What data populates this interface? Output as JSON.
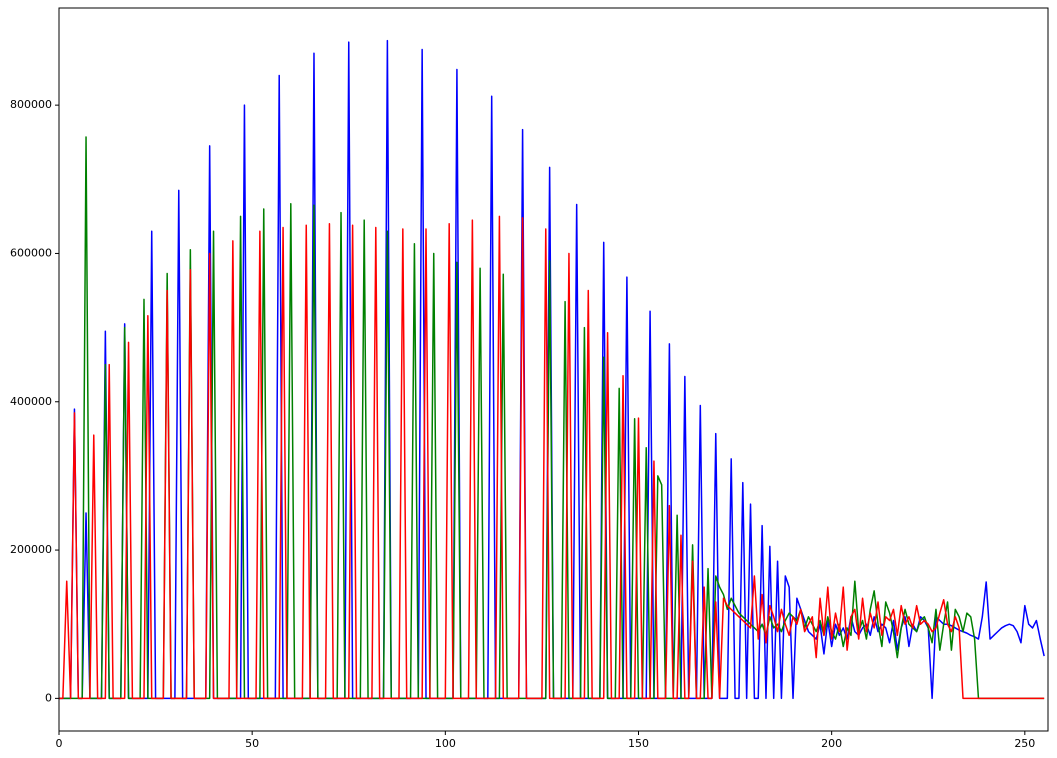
{
  "chart_data": {
    "type": "line",
    "x": [
      0,
      1,
      2,
      3,
      4,
      5,
      6,
      7,
      8,
      9,
      10,
      11,
      12,
      13,
      14,
      15,
      16,
      17,
      18,
      19,
      20,
      21,
      22,
      23,
      24,
      25,
      26,
      27,
      28,
      29,
      30,
      31,
      32,
      33,
      34,
      35,
      36,
      37,
      38,
      39,
      40,
      41,
      42,
      43,
      44,
      45,
      46,
      47,
      48,
      49,
      50,
      51,
      52,
      53,
      54,
      55,
      56,
      57,
      58,
      59,
      60,
      61,
      62,
      63,
      64,
      65,
      66,
      67,
      68,
      69,
      70,
      71,
      72,
      73,
      74,
      75,
      76,
      77,
      78,
      79,
      80,
      81,
      82,
      83,
      84,
      85,
      86,
      87,
      88,
      89,
      90,
      91,
      92,
      93,
      94,
      95,
      96,
      97,
      98,
      99,
      100,
      101,
      102,
      103,
      104,
      105,
      106,
      107,
      108,
      109,
      110,
      111,
      112,
      113,
      114,
      115,
      116,
      117,
      118,
      119,
      120,
      121,
      122,
      123,
      124,
      125,
      126,
      127,
      128,
      129,
      130,
      131,
      132,
      133,
      134,
      135,
      136,
      137,
      138,
      139,
      140,
      141,
      142,
      143,
      144,
      145,
      146,
      147,
      148,
      149,
      150,
      151,
      152,
      153,
      154,
      155,
      156,
      157,
      158,
      159,
      160,
      161,
      162,
      163,
      164,
      165,
      166,
      167,
      168,
      169,
      170,
      171,
      172,
      173,
      174,
      175,
      176,
      177,
      178,
      179,
      180,
      181,
      182,
      183,
      184,
      185,
      186,
      187,
      188,
      189,
      190,
      191,
      192,
      193,
      194,
      195,
      196,
      197,
      198,
      199,
      200,
      201,
      202,
      203,
      204,
      205,
      206,
      207,
      208,
      209,
      210,
      211,
      212,
      213,
      214,
      215,
      216,
      217,
      218,
      219,
      220,
      221,
      222,
      223,
      224,
      225,
      226,
      227,
      228,
      229,
      230,
      231,
      232,
      233,
      234,
      235,
      236,
      237,
      238,
      239,
      240,
      241,
      242,
      243,
      244,
      245,
      246,
      247,
      248,
      249,
      250,
      251,
      252,
      253,
      254,
      255
    ],
    "series": [
      {
        "color": "#0000ff",
        "values": [
          0,
          0,
          0,
          0,
          390000,
          0,
          0,
          250000,
          0,
          0,
          0,
          0,
          495000,
          0,
          0,
          0,
          0,
          505000,
          0,
          0,
          0,
          0,
          0,
          0,
          630000,
          0,
          0,
          0,
          0,
          0,
          0,
          685000,
          0,
          0,
          0,
          0,
          0,
          0,
          0,
          745000,
          0,
          0,
          0,
          0,
          0,
          0,
          0,
          0,
          800000,
          0,
          0,
          0,
          0,
          0,
          0,
          0,
          0,
          840000,
          0,
          0,
          0,
          0,
          0,
          0,
          0,
          0,
          870000,
          0,
          0,
          0,
          0,
          0,
          0,
          0,
          0,
          885000,
          0,
          0,
          0,
          0,
          0,
          0,
          0,
          0,
          0,
          887000,
          0,
          0,
          0,
          0,
          0,
          0,
          0,
          0,
          875000,
          0,
          0,
          0,
          0,
          0,
          0,
          0,
          0,
          848000,
          0,
          0,
          0,
          0,
          0,
          0,
          0,
          0,
          812000,
          0,
          0,
          0,
          0,
          0,
          0,
          0,
          767000,
          0,
          0,
          0,
          0,
          0,
          0,
          716000,
          0,
          0,
          0,
          0,
          0,
          0,
          666000,
          0,
          0,
          0,
          0,
          0,
          0,
          615000,
          0,
          0,
          0,
          0,
          0,
          568000,
          0,
          0,
          0,
          0,
          0,
          522000,
          0,
          0,
          0,
          0,
          478000,
          0,
          0,
          0,
          434000,
          0,
          0,
          0,
          395000,
          0,
          0,
          0,
          357000,
          0,
          0,
          0,
          323000,
          0,
          0,
          291000,
          0,
          262000,
          0,
          0,
          233000,
          0,
          205000,
          0,
          185000,
          0,
          165000,
          150000,
          0,
          135000,
          120000,
          105000,
          90000,
          85000,
          80000,
          100000,
          60000,
          105000,
          70000,
          100000,
          85000,
          95000,
          80000,
          110000,
          90000,
          85000,
          95000,
          100000,
          85000,
          110000,
          90000,
          100000,
          95000,
          75000,
          105000,
          65000,
          95000,
          110000,
          70000,
          100000,
          90000,
          110000,
          105000,
          95000,
          0,
          110000,
          105000,
          100000,
          100000,
          98000,
          95000,
          92000,
          90000,
          88000,
          85000,
          83000,
          80000,
          110000,
          157000,
          80000,
          85000,
          90000,
          95000,
          98000,
          100000,
          98000,
          90000,
          75000,
          125000,
          100000,
          95000,
          105000,
          80000,
          57000
        ]
      },
      {
        "color": "#008000",
        "values": [
          0,
          0,
          0,
          0,
          0,
          0,
          0,
          757000,
          0,
          0,
          0,
          0,
          450000,
          0,
          0,
          0,
          0,
          500000,
          0,
          0,
          0,
          0,
          538000,
          0,
          0,
          0,
          0,
          0,
          573000,
          0,
          0,
          0,
          0,
          0,
          605000,
          0,
          0,
          0,
          0,
          0,
          630000,
          0,
          0,
          0,
          0,
          0,
          0,
          650000,
          0,
          0,
          0,
          0,
          0,
          660000,
          0,
          0,
          0,
          0,
          0,
          0,
          667000,
          0,
          0,
          0,
          0,
          0,
          665000,
          0,
          0,
          0,
          0,
          0,
          0,
          655000,
          0,
          0,
          0,
          0,
          0,
          645000,
          0,
          0,
          0,
          0,
          0,
          630000,
          0,
          0,
          0,
          0,
          0,
          0,
          613000,
          0,
          0,
          0,
          0,
          600000,
          0,
          0,
          0,
          0,
          0,
          588000,
          0,
          0,
          0,
          0,
          0,
          580000,
          0,
          0,
          0,
          0,
          0,
          572000,
          0,
          0,
          0,
          0,
          0,
          0,
          0,
          0,
          0,
          0,
          0,
          590000,
          0,
          0,
          0,
          535000,
          0,
          0,
          0,
          0,
          500000,
          0,
          0,
          0,
          0,
          460000,
          0,
          0,
          0,
          418000,
          0,
          0,
          0,
          377000,
          0,
          0,
          338000,
          0,
          0,
          300000,
          288000,
          0,
          0,
          0,
          247000,
          0,
          0,
          0,
          207000,
          0,
          0,
          0,
          175000,
          0,
          165000,
          150000,
          140000,
          120000,
          135000,
          125000,
          115000,
          110000,
          105000,
          100000,
          95000,
          90000,
          100000,
          85000,
          110000,
          95000,
          100000,
          90000,
          105000,
          115000,
          110000,
          105000,
          120000,
          95000,
          110000,
          100000,
          90000,
          105000,
          85000,
          110000,
          90000,
          80000,
          100000,
          70000,
          95000,
          85000,
          158000,
          90000,
          105000,
          80000,
          120000,
          145000,
          100000,
          70000,
          130000,
          115000,
          90000,
          55000,
          95000,
          120000,
          100000,
          95000,
          90000,
          105000,
          110000,
          95000,
          75000,
          120000,
          65000,
          100000,
          130000,
          65000,
          120000,
          110000,
          90000,
          115000,
          110000,
          80000,
          0,
          0,
          0,
          0,
          0,
          0,
          0,
          0,
          0,
          0,
          0,
          0,
          0,
          0,
          0,
          0,
          0,
          0
        ]
      },
      {
        "color": "#ff0000",
        "values": [
          0,
          0,
          158000,
          0,
          385000,
          0,
          0,
          0,
          0,
          355000,
          0,
          0,
          0,
          450000,
          0,
          0,
          0,
          0,
          480000,
          0,
          0,
          0,
          0,
          516000,
          0,
          0,
          0,
          0,
          550000,
          0,
          0,
          0,
          0,
          0,
          578000,
          0,
          0,
          0,
          0,
          600000,
          0,
          0,
          0,
          0,
          0,
          617000,
          0,
          0,
          0,
          0,
          0,
          0,
          630000,
          0,
          0,
          0,
          0,
          0,
          635000,
          0,
          0,
          0,
          0,
          0,
          638000,
          0,
          0,
          0,
          0,
          0,
          640000,
          0,
          0,
          0,
          0,
          0,
          638000,
          0,
          0,
          0,
          0,
          0,
          635000,
          0,
          0,
          0,
          0,
          0,
          0,
          633000,
          0,
          0,
          0,
          0,
          0,
          633000,
          0,
          0,
          0,
          0,
          0,
          640000,
          0,
          0,
          0,
          0,
          0,
          645000,
          0,
          0,
          0,
          0,
          0,
          0,
          650000,
          0,
          0,
          0,
          0,
          0,
          648000,
          0,
          0,
          0,
          0,
          0,
          633000,
          0,
          0,
          0,
          0,
          0,
          600000,
          0,
          0,
          0,
          0,
          550000,
          0,
          0,
          0,
          0,
          493000,
          0,
          0,
          0,
          435000,
          0,
          0,
          0,
          378000,
          0,
          0,
          0,
          320000,
          0,
          0,
          0,
          260000,
          0,
          0,
          220000,
          0,
          0,
          185000,
          0,
          0,
          150000,
          0,
          0,
          130000,
          0,
          135000,
          125000,
          120000,
          115000,
          110000,
          105000,
          100000,
          95000,
          165000,
          80000,
          140000,
          75000,
          125000,
          110000,
          90000,
          120000,
          100000,
          85000,
          110000,
          100000,
          120000,
          90000,
          100000,
          110000,
          55000,
          135000,
          85000,
          150000,
          80000,
          115000,
          90000,
          150000,
          65000,
          110000,
          120000,
          80000,
          135000,
          90000,
          115000,
          95000,
          130000,
          85000,
          110000,
          105000,
          120000,
          85000,
          125000,
          100000,
          110000,
          95000,
          125000,
          100000,
          105000,
          100000,
          90000,
          95000,
          115000,
          133000,
          100000,
          90000,
          110000,
          95000,
          0,
          0,
          0,
          0,
          0,
          0,
          0,
          0,
          0,
          0,
          0,
          0,
          0,
          0,
          0,
          0,
          0,
          0,
          0,
          0,
          0,
          0
        ]
      }
    ],
    "xlim": [
      0,
      256
    ],
    "xticks": [
      0,
      50,
      100,
      150,
      200,
      250
    ],
    "ylim": [
      -44000,
      931000
    ],
    "yticks": [
      0,
      200000,
      400000,
      600000,
      800000
    ]
  }
}
